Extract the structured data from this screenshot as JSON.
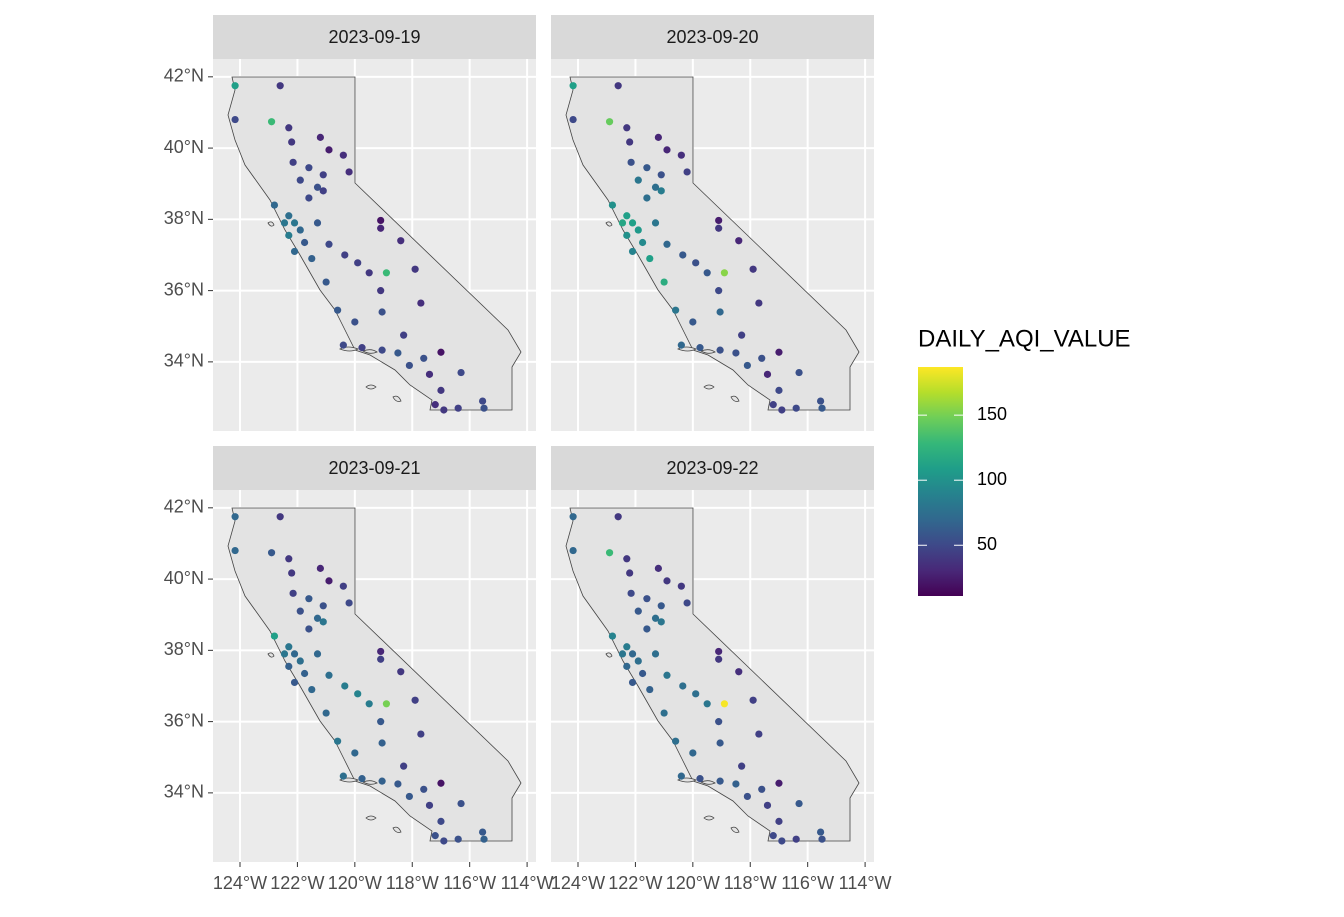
{
  "chart_data": {
    "type": "scatter",
    "legend_title": "DAILY_AQI_VALUE",
    "colormap": "viridis",
    "color_lim": [
      11,
      187
    ],
    "color_ticks": [
      50,
      100,
      150
    ],
    "grid": true,
    "xlim": [
      -124.94,
      -113.69
    ],
    "ylim": [
      32.06,
      42.5
    ],
    "xticks": [
      {
        "value": -124,
        "label": "124°W"
      },
      {
        "value": -122,
        "label": "122°W"
      },
      {
        "value": -120,
        "label": "120°W"
      },
      {
        "value": -118,
        "label": "118°W"
      },
      {
        "value": -116,
        "label": "116°W"
      },
      {
        "value": -114,
        "label": "114°W"
      }
    ],
    "yticks": [
      {
        "value": 34,
        "label": "34°N"
      },
      {
        "value": 36,
        "label": "36°N"
      },
      {
        "value": 38,
        "label": "38°N"
      },
      {
        "value": 40,
        "label": "40°N"
      },
      {
        "value": 42,
        "label": "42°N"
      }
    ],
    "x": [
      -124.17,
      -122.6,
      -122.9,
      -122.3,
      -121.2,
      -122.2,
      -120.9,
      -120.4,
      -122.15,
      -121.6,
      -121.1,
      -120.2,
      -121.9,
      -121.3,
      -121.1,
      -121.6,
      -122.8,
      -122.3,
      -122.45,
      -122.1,
      -121.9,
      -122.3,
      -121.3,
      -121.75,
      -120.9,
      -121.5,
      -122.1,
      -120.35,
      -119.9,
      -119.5,
      -118.9,
      -119.1,
      -118.4,
      -119.1,
      -117.9,
      -121.0,
      -120.6,
      -120.0,
      -119.05,
      -117.7,
      -120.4,
      -119.75,
      -119.05,
      -118.5,
      -118.1,
      -117.6,
      -117.0,
      -118.3,
      -117.4,
      -116.3,
      -117.0,
      -117.2,
      -116.9,
      -116.4,
      -115.55,
      -115.5,
      -119.1,
      -124.17
    ],
    "y": [
      41.75,
      41.75,
      40.74,
      40.57,
      40.3,
      40.17,
      39.95,
      39.8,
      39.6,
      39.45,
      39.25,
      39.33,
      39.1,
      38.9,
      38.8,
      38.6,
      38.4,
      38.1,
      37.9,
      37.9,
      37.7,
      37.55,
      37.9,
      37.35,
      37.3,
      36.9,
      37.1,
      37.0,
      36.78,
      36.5,
      36.5,
      36.0,
      37.4,
      37.75,
      36.6,
      36.24,
      35.45,
      35.12,
      35.4,
      35.65,
      34.47,
      34.4,
      34.33,
      34.25,
      33.9,
      34.1,
      34.27,
      34.75,
      33.65,
      33.7,
      33.2,
      32.8,
      32.65,
      32.7,
      32.9,
      32.7,
      37.97,
      40.8
    ],
    "facets": [
      {
        "title": "2023-09-19",
        "values": [
          110,
          40,
          130,
          40,
          30,
          40,
          25,
          35,
          45,
          50,
          45,
          35,
          50,
          55,
          45,
          50,
          70,
          75,
          80,
          80,
          70,
          85,
          60,
          60,
          50,
          65,
          70,
          45,
          45,
          40,
          130,
          40,
          35,
          30,
          40,
          60,
          60,
          55,
          55,
          35,
          50,
          45,
          50,
          60,
          55,
          55,
          20,
          45,
          35,
          50,
          40,
          35,
          40,
          45,
          50,
          55,
          20,
          50
        ]
      },
      {
        "title": "2023-09-20",
        "values": [
          110,
          40,
          145,
          40,
          30,
          40,
          30,
          35,
          55,
          60,
          55,
          45,
          80,
          75,
          85,
          75,
          100,
          110,
          115,
          110,
          105,
          100,
          80,
          95,
          70,
          110,
          90,
          60,
          55,
          60,
          155,
          50,
          30,
          40,
          40,
          120,
          80,
          60,
          70,
          40,
          70,
          60,
          55,
          55,
          60,
          55,
          25,
          45,
          30,
          55,
          50,
          45,
          45,
          50,
          55,
          60,
          25,
          50
        ]
      },
      {
        "title": "2023-09-21",
        "values": [
          70,
          40,
          60,
          40,
          30,
          40,
          25,
          45,
          45,
          60,
          55,
          50,
          55,
          70,
          80,
          55,
          110,
          80,
          80,
          70,
          75,
          65,
          70,
          65,
          75,
          70,
          60,
          85,
          90,
          85,
          150,
          60,
          40,
          45,
          45,
          70,
          80,
          70,
          65,
          45,
          75,
          65,
          65,
          60,
          60,
          55,
          20,
          45,
          45,
          55,
          50,
          55,
          50,
          55,
          60,
          65,
          30,
          70
        ]
      },
      {
        "title": "2023-09-22",
        "values": [
          70,
          40,
          130,
          40,
          35,
          40,
          40,
          40,
          50,
          55,
          60,
          50,
          60,
          75,
          80,
          60,
          90,
          85,
          80,
          70,
          75,
          70,
          75,
          60,
          80,
          65,
          60,
          75,
          75,
          80,
          185,
          55,
          35,
          40,
          45,
          75,
          75,
          70,
          60,
          45,
          70,
          55,
          60,
          65,
          55,
          55,
          25,
          45,
          45,
          60,
          45,
          50,
          50,
          45,
          60,
          55,
          30,
          70
        ]
      }
    ]
  }
}
